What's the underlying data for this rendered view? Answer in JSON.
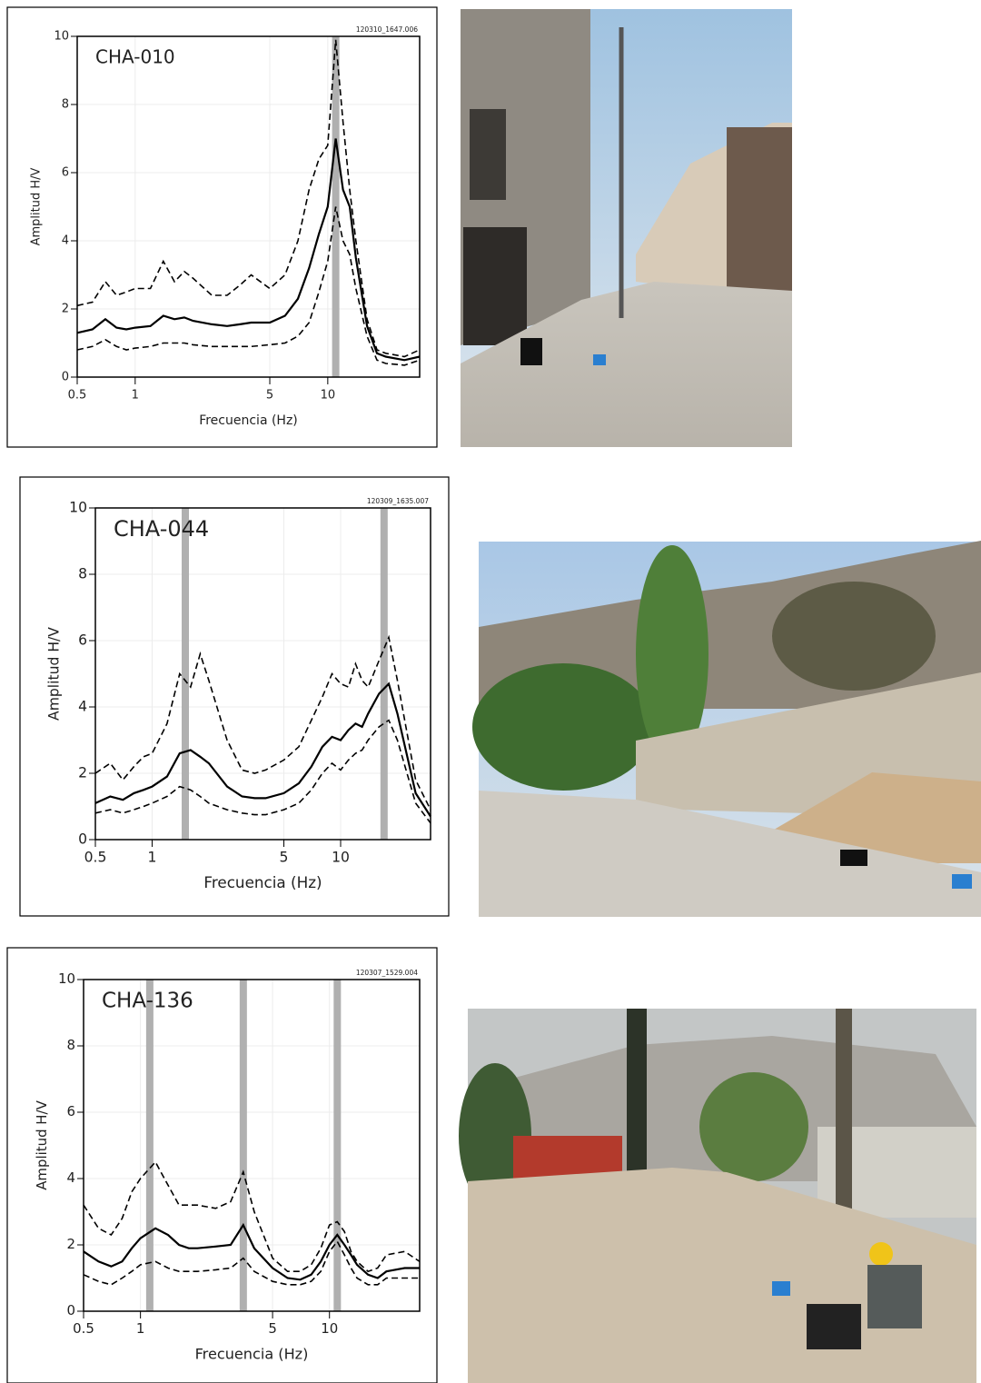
{
  "chart_data": [
    {
      "type": "line",
      "title": "CHA-010",
      "stamp": "120310_1647.006",
      "x_label": "Frecuencia (Hz)",
      "y_label": "Amplitud H/V",
      "xscale": "log",
      "xlim": [
        0.5,
        30
      ],
      "ylim": [
        0,
        10
      ],
      "xticks": [
        0.5,
        1,
        5,
        10
      ],
      "yticks": [
        0,
        2,
        4,
        6,
        8,
        10
      ],
      "grid": true,
      "peaks": [
        11
      ],
      "peak_color": "#b0b0b0",
      "x": [
        0.5,
        0.6,
        0.7,
        0.8,
        0.9,
        1,
        1.2,
        1.4,
        1.6,
        1.8,
        2,
        2.5,
        3,
        3.5,
        4,
        5,
        6,
        7,
        8,
        9,
        10,
        11,
        12,
        13,
        14,
        16,
        18,
        20,
        25,
        30
      ],
      "series": [
        {
          "color": "#000000",
          "style": "solid",
          "values": [
            1.3,
            1.4,
            1.7,
            1.45,
            1.4,
            1.45,
            1.5,
            1.8,
            1.7,
            1.75,
            1.65,
            1.55,
            1.5,
            1.55,
            1.6,
            1.6,
            1.8,
            2.3,
            3.2,
            4.2,
            5,
            7.0,
            5.5,
            5,
            3.5,
            1.5,
            0.7,
            0.6,
            0.5,
            0.6
          ]
        },
        {
          "color": "#000000",
          "style": "dashed",
          "values": [
            2.1,
            2.2,
            2.8,
            2.4,
            2.5,
            2.6,
            2.6,
            3.4,
            2.8,
            3.1,
            2.9,
            2.4,
            2.4,
            2.7,
            3.0,
            2.6,
            3.0,
            4.0,
            5.5,
            6.4,
            6.8,
            9.9,
            7.5,
            5.5,
            4.0,
            1.7,
            0.8,
            0.7,
            0.6,
            0.8
          ]
        },
        {
          "color": "#000000",
          "style": "dashed",
          "values": [
            0.8,
            0.9,
            1.1,
            0.9,
            0.8,
            0.85,
            0.9,
            1.0,
            1.0,
            1.0,
            0.95,
            0.9,
            0.9,
            0.9,
            0.9,
            0.95,
            1.0,
            1.2,
            1.6,
            2.5,
            3.4,
            5.0,
            4.0,
            3.6,
            2.6,
            1.2,
            0.5,
            0.4,
            0.35,
            0.5
          ]
        }
      ]
    },
    {
      "type": "line",
      "title": "CHA-044",
      "stamp": "120309_1635.007",
      "x_label": "Frecuencia (Hz)",
      "y_label": "Amplitud H/V",
      "xscale": "log",
      "xlim": [
        0.5,
        30
      ],
      "ylim": [
        0,
        10
      ],
      "xticks": [
        0.5,
        1,
        5,
        10
      ],
      "yticks": [
        0,
        2,
        4,
        6,
        8,
        10
      ],
      "grid": true,
      "peaks": [
        1.5,
        17
      ],
      "peak_color": "#b0b0b0",
      "x": [
        0.5,
        0.6,
        0.7,
        0.8,
        0.9,
        1,
        1.2,
        1.4,
        1.6,
        1.8,
        2,
        2.5,
        3,
        3.5,
        4,
        5,
        6,
        7,
        8,
        9,
        10,
        11,
        12,
        13,
        14,
        16,
        18,
        20,
        25,
        30
      ],
      "series": [
        {
          "color": "#000000",
          "style": "solid",
          "values": [
            1.1,
            1.3,
            1.2,
            1.4,
            1.5,
            1.6,
            1.9,
            2.6,
            2.7,
            2.5,
            2.3,
            1.6,
            1.3,
            1.25,
            1.25,
            1.4,
            1.7,
            2.2,
            2.8,
            3.1,
            3.0,
            3.3,
            3.5,
            3.4,
            3.8,
            4.4,
            4.7,
            3.8,
            1.4,
            0.7
          ]
        },
        {
          "color": "#000000",
          "style": "dashed",
          "values": [
            2.0,
            2.3,
            1.8,
            2.2,
            2.5,
            2.6,
            3.5,
            5.0,
            4.6,
            5.6,
            4.8,
            3.0,
            2.1,
            2.0,
            2.1,
            2.4,
            2.8,
            3.6,
            4.3,
            5.0,
            4.7,
            4.6,
            5.3,
            4.8,
            4.6,
            5.4,
            6.1,
            4.8,
            1.8,
            0.9
          ]
        },
        {
          "color": "#000000",
          "style": "dashed",
          "values": [
            0.8,
            0.9,
            0.8,
            0.9,
            1.0,
            1.1,
            1.3,
            1.6,
            1.5,
            1.3,
            1.1,
            0.9,
            0.8,
            0.75,
            0.75,
            0.9,
            1.1,
            1.5,
            2.0,
            2.3,
            2.1,
            2.4,
            2.6,
            2.7,
            3.0,
            3.4,
            3.6,
            3.0,
            1.1,
            0.5
          ]
        }
      ]
    },
    {
      "type": "line",
      "title": "CHA-136",
      "stamp": "120307_1529.004",
      "x_label": "Frecuencia (Hz)",
      "y_label": "Amplitud H/V",
      "xscale": "log",
      "xlim": [
        0.5,
        30
      ],
      "ylim": [
        0,
        10
      ],
      "xticks": [
        0.5,
        1,
        5,
        10
      ],
      "yticks": [
        0,
        2,
        4,
        6,
        8,
        10
      ],
      "grid": true,
      "peaks": [
        1.12,
        3.5,
        11
      ],
      "peak_color": "#b0b0b0",
      "x": [
        0.5,
        0.6,
        0.7,
        0.8,
        0.9,
        1,
        1.2,
        1.4,
        1.6,
        1.8,
        2,
        2.5,
        3,
        3.5,
        4,
        5,
        6,
        7,
        8,
        9,
        10,
        11,
        12,
        13,
        14,
        16,
        18,
        20,
        25,
        30
      ],
      "series": [
        {
          "color": "#000000",
          "style": "solid",
          "values": [
            1.8,
            1.5,
            1.35,
            1.5,
            1.9,
            2.2,
            2.5,
            2.3,
            2.0,
            1.9,
            1.9,
            1.95,
            2.0,
            2.6,
            1.9,
            1.3,
            1.0,
            0.95,
            1.1,
            1.5,
            2.0,
            2.3,
            2.0,
            1.7,
            1.4,
            1.1,
            1.0,
            1.2,
            1.3,
            1.3
          ]
        },
        {
          "color": "#000000",
          "style": "dashed",
          "values": [
            3.2,
            2.5,
            2.3,
            2.8,
            3.6,
            4.0,
            4.5,
            3.8,
            3.2,
            3.2,
            3.2,
            3.1,
            3.3,
            4.2,
            3.0,
            1.6,
            1.2,
            1.2,
            1.4,
            1.9,
            2.6,
            2.7,
            2.4,
            1.8,
            1.5,
            1.2,
            1.3,
            1.7,
            1.8,
            1.5
          ]
        },
        {
          "color": "#000000",
          "style": "dashed",
          "values": [
            1.1,
            0.9,
            0.8,
            1.0,
            1.2,
            1.4,
            1.5,
            1.3,
            1.2,
            1.2,
            1.2,
            1.25,
            1.3,
            1.6,
            1.2,
            0.9,
            0.8,
            0.8,
            0.9,
            1.2,
            1.8,
            2.1,
            1.7,
            1.3,
            1.0,
            0.8,
            0.8,
            1.0,
            1.0,
            1.0
          ]
        }
      ]
    }
  ]
}
